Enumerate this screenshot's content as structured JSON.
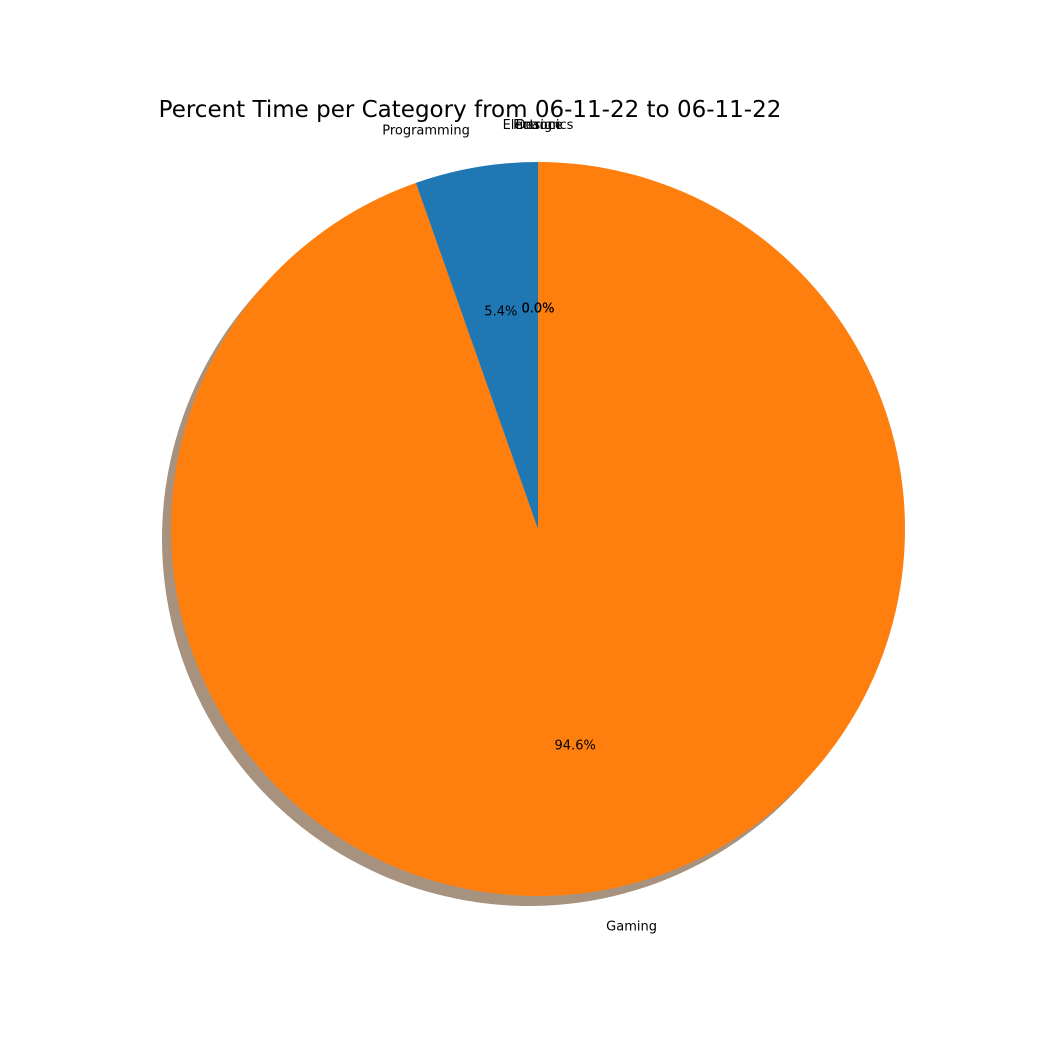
{
  "chart_data": {
    "type": "pie",
    "title": "Percent Time per Category from 06-11-22 to 06-11-22",
    "categories": [
      "Programming",
      "Gaming",
      "Electronics",
      "Finance",
      "Design"
    ],
    "values": [
      5.4,
      94.6,
      0.0,
      0.0,
      0.0
    ],
    "percent_labels": [
      "5.4%",
      "94.6%",
      "0.0%",
      "0.0%",
      "0.0%"
    ],
    "colors": [
      "#1f77b4",
      "#ff7f0e",
      "#2ca02c",
      "#d62728",
      "#9467bd"
    ],
    "start_angle_deg": 90,
    "direction": "counterclockwise",
    "shadow": true,
    "legend": "none"
  }
}
